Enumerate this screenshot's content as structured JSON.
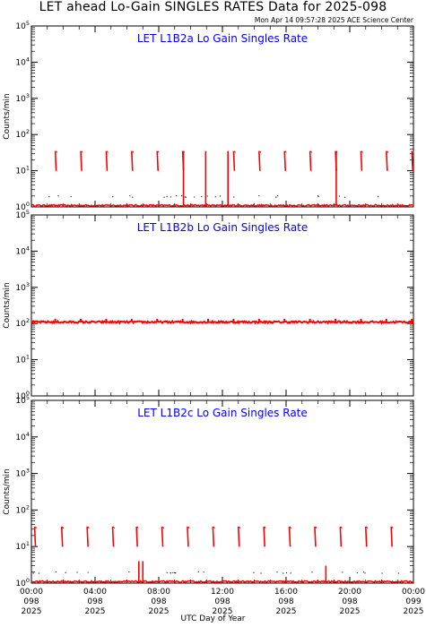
{
  "title": "LET ahead Lo-Gain SINGLES RATES Data for 2025-098",
  "timestamp": "Mon Apr 14 09:57:28 2025 ACE Science Center",
  "xlabel": "UTC Day of Year",
  "colors": {
    "data": "#ff0000",
    "panel_title": "#0000ff",
    "axes": "#000000"
  },
  "chart_data": [
    {
      "type": "line",
      "title": "LET L1B2a Lo Gain Singles Rate",
      "ylabel": "Counts/min",
      "yscale": "log",
      "ylim": [
        1,
        100000
      ],
      "xlim": [
        0,
        24
      ],
      "ytick_labels": [
        "10^0",
        "10^1",
        "10^2",
        "10^3",
        "10^4",
        "10^5"
      ],
      "baseline": 1.1,
      "bursts": [
        {
          "x": 1.5,
          "y": 35
        },
        {
          "x": 3.1,
          "y": 35
        },
        {
          "x": 4.7,
          "y": 35
        },
        {
          "x": 6.3,
          "y": 35
        },
        {
          "x": 7.9,
          "y": 35
        },
        {
          "x": 9.5,
          "y": 35
        },
        {
          "x": 12.7,
          "y": 35
        },
        {
          "x": 14.3,
          "y": 35
        },
        {
          "x": 15.9,
          "y": 35
        },
        {
          "x": 17.5,
          "y": 35
        },
        {
          "x": 19.1,
          "y": 35
        },
        {
          "x": 20.7,
          "y": 35
        },
        {
          "x": 22.3,
          "y": 35
        },
        {
          "x": 23.9,
          "y": 35
        }
      ],
      "spikes": [
        {
          "x": 9.55,
          "y": 35
        },
        {
          "x": 10.95,
          "y": 35
        },
        {
          "x": 12.35,
          "y": 35
        },
        {
          "x": 19.15,
          "y": 35
        }
      ]
    },
    {
      "type": "line",
      "title": "LET L1B2b Lo Gain Singles Rate",
      "ylabel": "Counts/min",
      "yscale": "log",
      "ylim": [
        1,
        100000
      ],
      "xlim": [
        0,
        24
      ],
      "ytick_labels": [
        "10^0",
        "10^1",
        "10^2",
        "10^3",
        "10^4",
        "10^5"
      ],
      "baseline": 110,
      "bursts": [
        {
          "x": 1.5,
          "y": 135
        },
        {
          "x": 3.1,
          "y": 135
        },
        {
          "x": 4.7,
          "y": 135
        },
        {
          "x": 6.3,
          "y": 135
        },
        {
          "x": 7.9,
          "y": 135
        },
        {
          "x": 9.5,
          "y": 135
        },
        {
          "x": 11.1,
          "y": 135
        },
        {
          "x": 12.7,
          "y": 135
        },
        {
          "x": 14.3,
          "y": 135
        },
        {
          "x": 15.9,
          "y": 135
        },
        {
          "x": 17.5,
          "y": 135
        },
        {
          "x": 19.1,
          "y": 135
        },
        {
          "x": 20.7,
          "y": 135
        },
        {
          "x": 22.3,
          "y": 135
        },
        {
          "x": 23.9,
          "y": 135
        }
      ],
      "spikes": []
    },
    {
      "type": "line",
      "title": "LET L1B2c Lo Gain Singles Rate",
      "ylabel": "Counts/min",
      "yscale": "log",
      "ylim": [
        1,
        100000
      ],
      "xlim": [
        0,
        24
      ],
      "ytick_labels": [
        "10^0",
        "10^1",
        "10^2",
        "10^3",
        "10^4",
        "10^5"
      ],
      "baseline": 1.1,
      "bursts": [
        {
          "x": 0.2,
          "y": 35
        },
        {
          "x": 1.9,
          "y": 35
        },
        {
          "x": 3.5,
          "y": 35
        },
        {
          "x": 5.1,
          "y": 35
        },
        {
          "x": 6.6,
          "y": 35
        },
        {
          "x": 8.2,
          "y": 35
        },
        {
          "x": 9.8,
          "y": 35
        },
        {
          "x": 11.4,
          "y": 35
        },
        {
          "x": 13.0,
          "y": 35
        },
        {
          "x": 14.6,
          "y": 35
        },
        {
          "x": 16.2,
          "y": 35
        },
        {
          "x": 17.8,
          "y": 35
        },
        {
          "x": 19.4,
          "y": 35
        },
        {
          "x": 21.0,
          "y": 35
        },
        {
          "x": 22.6,
          "y": 35
        }
      ],
      "spikes": [
        {
          "x": 6.75,
          "y": 4
        },
        {
          "x": 7.0,
          "y": 4
        },
        {
          "x": 18.5,
          "y": 3
        }
      ]
    }
  ],
  "xticks": [
    {
      "x": 0,
      "time": "00:00",
      "doy": "098",
      "year": "2025"
    },
    {
      "x": 4,
      "time": "04:00",
      "doy": "098",
      "year": "2025"
    },
    {
      "x": 8,
      "time": "08:00",
      "doy": "098",
      "year": "2025"
    },
    {
      "x": 12,
      "time": "12:00",
      "doy": "098",
      "year": "2025"
    },
    {
      "x": 16,
      "time": "16:00",
      "doy": "098",
      "year": "2025"
    },
    {
      "x": 20,
      "time": "20:00",
      "doy": "098",
      "year": "2025"
    },
    {
      "x": 24,
      "time": "00:00",
      "doy": "099",
      "year": "2025"
    }
  ]
}
